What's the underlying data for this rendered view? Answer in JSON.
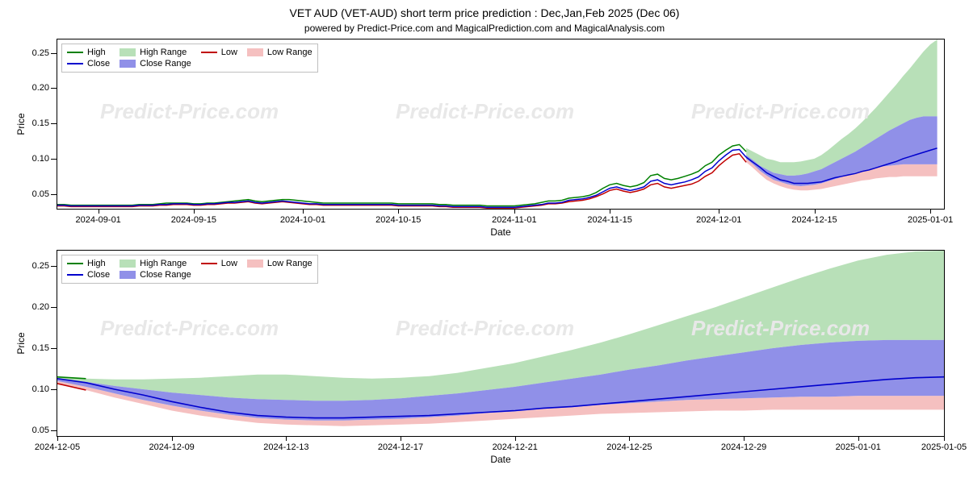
{
  "title": "VET AUD (VET-AUD) short term price prediction : Dec,Jan,Feb 2025 (Dec 06)",
  "subtitle": "powered by Predict-Price.com and MagicalPrediction.com and MagicalAnalysis.com",
  "watermark": "Predict-Price.com",
  "chart_top": {
    "type": "line+area",
    "ylabel": "Price",
    "xlabel": "Date",
    "ylim": [
      0.029,
      0.269
    ],
    "yticks": [
      0.05,
      0.1,
      0.15,
      0.2,
      0.25
    ],
    "xlim": [
      0,
      130
    ],
    "xticks_idx": [
      6,
      20,
      36,
      50,
      67,
      81,
      97,
      111,
      128
    ],
    "xticks_labels": [
      "2024-09-01",
      "2024-09-15",
      "2024-10-01",
      "2024-10-15",
      "2024-11-01",
      "2024-11-15",
      "2024-12-01",
      "2024-12-15",
      "2025-01-01"
    ],
    "colors": {
      "high": "#008000",
      "low": "#c00000",
      "close": "#0000cd",
      "high_range": "#b8e0b8",
      "low_range": "#f5c0c0",
      "close_range": "#9090e8",
      "bg": "#ffffff",
      "border": "#000000"
    },
    "high": [
      0.035,
      0.035,
      0.034,
      0.034,
      0.034,
      0.034,
      0.034,
      0.034,
      0.034,
      0.034,
      0.034,
      0.034,
      0.035,
      0.035,
      0.035,
      0.036,
      0.037,
      0.037,
      0.037,
      0.037,
      0.036,
      0.036,
      0.037,
      0.037,
      0.038,
      0.039,
      0.04,
      0.041,
      0.042,
      0.04,
      0.039,
      0.04,
      0.041,
      0.042,
      0.042,
      0.041,
      0.04,
      0.039,
      0.038,
      0.037,
      0.037,
      0.037,
      0.037,
      0.037,
      0.037,
      0.037,
      0.037,
      0.037,
      0.037,
      0.037,
      0.036,
      0.036,
      0.036,
      0.036,
      0.036,
      0.036,
      0.035,
      0.035,
      0.034,
      0.034,
      0.034,
      0.034,
      0.034,
      0.033,
      0.033,
      0.033,
      0.033,
      0.033,
      0.034,
      0.035,
      0.036,
      0.038,
      0.04,
      0.04,
      0.041,
      0.044,
      0.045,
      0.046,
      0.048,
      0.052,
      0.058,
      0.063,
      0.065,
      0.062,
      0.06,
      0.062,
      0.066,
      0.076,
      0.078,
      0.072,
      0.07,
      0.072,
      0.075,
      0.078,
      0.082,
      0.09,
      0.095,
      0.105,
      0.112,
      0.118,
      0.12,
      0.11
    ],
    "low": [
      0.033,
      0.033,
      0.032,
      0.032,
      0.032,
      0.032,
      0.032,
      0.032,
      0.032,
      0.032,
      0.032,
      0.032,
      0.033,
      0.033,
      0.033,
      0.034,
      0.034,
      0.035,
      0.035,
      0.035,
      0.034,
      0.034,
      0.035,
      0.035,
      0.036,
      0.037,
      0.037,
      0.038,
      0.039,
      0.037,
      0.036,
      0.037,
      0.038,
      0.039,
      0.038,
      0.037,
      0.036,
      0.035,
      0.035,
      0.034,
      0.034,
      0.034,
      0.034,
      0.034,
      0.034,
      0.034,
      0.034,
      0.034,
      0.034,
      0.034,
      0.033,
      0.033,
      0.033,
      0.033,
      0.033,
      0.033,
      0.032,
      0.032,
      0.031,
      0.031,
      0.031,
      0.031,
      0.031,
      0.03,
      0.03,
      0.03,
      0.03,
      0.03,
      0.031,
      0.032,
      0.033,
      0.034,
      0.036,
      0.036,
      0.037,
      0.039,
      0.04,
      0.041,
      0.043,
      0.046,
      0.05,
      0.055,
      0.057,
      0.054,
      0.052,
      0.054,
      0.057,
      0.063,
      0.065,
      0.06,
      0.058,
      0.06,
      0.062,
      0.064,
      0.068,
      0.075,
      0.08,
      0.09,
      0.098,
      0.105,
      0.107,
      0.095
    ],
    "close": [
      0.034,
      0.034,
      0.033,
      0.033,
      0.033,
      0.033,
      0.033,
      0.033,
      0.033,
      0.033,
      0.033,
      0.033,
      0.034,
      0.034,
      0.034,
      0.035,
      0.035,
      0.036,
      0.036,
      0.036,
      0.035,
      0.035,
      0.036,
      0.036,
      0.037,
      0.038,
      0.038,
      0.039,
      0.04,
      0.038,
      0.037,
      0.038,
      0.039,
      0.04,
      0.039,
      0.038,
      0.037,
      0.036,
      0.036,
      0.035,
      0.035,
      0.035,
      0.035,
      0.035,
      0.035,
      0.035,
      0.035,
      0.035,
      0.035,
      0.035,
      0.034,
      0.034,
      0.034,
      0.034,
      0.034,
      0.034,
      0.033,
      0.033,
      0.032,
      0.032,
      0.032,
      0.032,
      0.032,
      0.031,
      0.031,
      0.031,
      0.031,
      0.031,
      0.032,
      0.033,
      0.034,
      0.035,
      0.037,
      0.037,
      0.038,
      0.041,
      0.042,
      0.043,
      0.045,
      0.048,
      0.053,
      0.058,
      0.06,
      0.057,
      0.055,
      0.057,
      0.06,
      0.068,
      0.07,
      0.065,
      0.063,
      0.065,
      0.067,
      0.07,
      0.074,
      0.082,
      0.087,
      0.097,
      0.105,
      0.112,
      0.113,
      0.102
    ],
    "forecast_idx_start": 101,
    "forecast_close": [
      0.102,
      0.095,
      0.088,
      0.08,
      0.075,
      0.07,
      0.068,
      0.065,
      0.065,
      0.065,
      0.066,
      0.067,
      0.07,
      0.073,
      0.075,
      0.077,
      0.079,
      0.082,
      0.084,
      0.087,
      0.09,
      0.093,
      0.096,
      0.1,
      0.103,
      0.106,
      0.109,
      0.112,
      0.115
    ],
    "forecast_high_top": [
      0.115,
      0.11,
      0.105,
      0.1,
      0.098,
      0.095,
      0.095,
      0.095,
      0.096,
      0.098,
      0.1,
      0.105,
      0.112,
      0.12,
      0.128,
      0.135,
      0.143,
      0.152,
      0.162,
      0.172,
      0.183,
      0.194,
      0.205,
      0.217,
      0.228,
      0.24,
      0.252,
      0.262,
      0.269
    ],
    "forecast_high_bot": [
      0.105,
      0.098,
      0.09,
      0.085,
      0.08,
      0.078,
      0.076,
      0.076,
      0.077,
      0.079,
      0.082,
      0.085,
      0.09,
      0.095,
      0.1,
      0.105,
      0.11,
      0.116,
      0.122,
      0.128,
      0.134,
      0.14,
      0.145,
      0.15,
      0.155,
      0.158,
      0.16,
      0.16,
      0.16
    ],
    "forecast_close_top": [
      0.105,
      0.098,
      0.09,
      0.085,
      0.08,
      0.078,
      0.076,
      0.076,
      0.077,
      0.079,
      0.082,
      0.085,
      0.09,
      0.095,
      0.1,
      0.105,
      0.11,
      0.116,
      0.122,
      0.128,
      0.134,
      0.14,
      0.145,
      0.15,
      0.155,
      0.158,
      0.16,
      0.16,
      0.16
    ],
    "forecast_close_bot": [
      0.1,
      0.092,
      0.083,
      0.076,
      0.07,
      0.067,
      0.064,
      0.062,
      0.061,
      0.062,
      0.063,
      0.065,
      0.068,
      0.071,
      0.074,
      0.077,
      0.08,
      0.083,
      0.085,
      0.087,
      0.089,
      0.09,
      0.091,
      0.092,
      0.092,
      0.092,
      0.092,
      0.092,
      0.092
    ],
    "forecast_low_top": [
      0.1,
      0.092,
      0.083,
      0.076,
      0.07,
      0.067,
      0.064,
      0.062,
      0.061,
      0.062,
      0.063,
      0.065,
      0.068,
      0.071,
      0.074,
      0.077,
      0.08,
      0.083,
      0.085,
      0.087,
      0.089,
      0.09,
      0.091,
      0.092,
      0.092,
      0.092,
      0.092,
      0.092,
      0.092
    ],
    "forecast_low_bot": [
      0.095,
      0.087,
      0.078,
      0.07,
      0.065,
      0.061,
      0.058,
      0.056,
      0.055,
      0.055,
      0.056,
      0.057,
      0.059,
      0.061,
      0.063,
      0.065,
      0.067,
      0.069,
      0.07,
      0.072,
      0.073,
      0.074,
      0.074,
      0.075,
      0.075,
      0.075,
      0.075,
      0.075,
      0.075
    ]
  },
  "chart_bottom": {
    "type": "line+area",
    "ylabel": "Price",
    "xlabel": "Date",
    "ylim": [
      0.043,
      0.269
    ],
    "yticks": [
      0.05,
      0.1,
      0.15,
      0.2,
      0.25
    ],
    "xlim": [
      0,
      31
    ],
    "xticks_idx": [
      0,
      4,
      8,
      12,
      16,
      20,
      24,
      28,
      31
    ],
    "xticks_labels": [
      "2024-12-05",
      "2024-12-09",
      "2024-12-13",
      "2024-12-17",
      "2024-12-21",
      "2024-12-25",
      "2024-12-29",
      "2025-01-01",
      "2025-01-05"
    ],
    "close": [
      0.113,
      0.108,
      0.1,
      0.093,
      0.085,
      0.078,
      0.072,
      0.068,
      0.066,
      0.065,
      0.065,
      0.066,
      0.067,
      0.068,
      0.07,
      0.072,
      0.074,
      0.077,
      0.079,
      0.082,
      0.085,
      0.088,
      0.091,
      0.094,
      0.097,
      0.1,
      0.103,
      0.106,
      0.109,
      0.112,
      0.114,
      0.115
    ],
    "high_top": [
      0.115,
      0.113,
      0.112,
      0.112,
      0.113,
      0.114,
      0.116,
      0.118,
      0.118,
      0.116,
      0.114,
      0.113,
      0.114,
      0.116,
      0.12,
      0.126,
      0.132,
      0.14,
      0.148,
      0.157,
      0.167,
      0.178,
      0.189,
      0.2,
      0.212,
      0.224,
      0.236,
      0.247,
      0.257,
      0.264,
      0.268,
      0.269
    ],
    "high_bot": [
      0.113,
      0.109,
      0.104,
      0.1,
      0.096,
      0.093,
      0.09,
      0.088,
      0.087,
      0.086,
      0.086,
      0.087,
      0.089,
      0.092,
      0.095,
      0.099,
      0.103,
      0.108,
      0.113,
      0.118,
      0.124,
      0.129,
      0.135,
      0.14,
      0.145,
      0.15,
      0.154,
      0.157,
      0.159,
      0.16,
      0.16,
      0.16
    ],
    "close_top": [
      0.113,
      0.109,
      0.104,
      0.1,
      0.096,
      0.093,
      0.09,
      0.088,
      0.087,
      0.086,
      0.086,
      0.087,
      0.089,
      0.092,
      0.095,
      0.099,
      0.103,
      0.108,
      0.113,
      0.118,
      0.124,
      0.129,
      0.135,
      0.14,
      0.145,
      0.15,
      0.154,
      0.157,
      0.159,
      0.16,
      0.16,
      0.16
    ],
    "close_bot": [
      0.11,
      0.103,
      0.095,
      0.087,
      0.08,
      0.074,
      0.069,
      0.065,
      0.063,
      0.062,
      0.062,
      0.063,
      0.064,
      0.066,
      0.068,
      0.071,
      0.073,
      0.076,
      0.078,
      0.081,
      0.083,
      0.085,
      0.087,
      0.088,
      0.089,
      0.09,
      0.091,
      0.091,
      0.092,
      0.092,
      0.092,
      0.092
    ],
    "low_top": [
      0.11,
      0.103,
      0.095,
      0.087,
      0.08,
      0.074,
      0.069,
      0.065,
      0.063,
      0.062,
      0.062,
      0.063,
      0.064,
      0.066,
      0.068,
      0.071,
      0.073,
      0.076,
      0.078,
      0.081,
      0.083,
      0.085,
      0.087,
      0.088,
      0.089,
      0.09,
      0.091,
      0.091,
      0.092,
      0.092,
      0.092,
      0.092
    ],
    "low_bot": [
      0.107,
      0.099,
      0.09,
      0.082,
      0.074,
      0.068,
      0.063,
      0.059,
      0.057,
      0.056,
      0.055,
      0.056,
      0.057,
      0.058,
      0.06,
      0.062,
      0.064,
      0.066,
      0.068,
      0.07,
      0.071,
      0.072,
      0.073,
      0.074,
      0.074,
      0.075,
      0.075,
      0.075,
      0.075,
      0.075,
      0.075,
      0.075
    ]
  },
  "legend": {
    "items": [
      "High",
      "Low",
      "Close",
      "High Range",
      "Low Range",
      "Close Range"
    ]
  }
}
